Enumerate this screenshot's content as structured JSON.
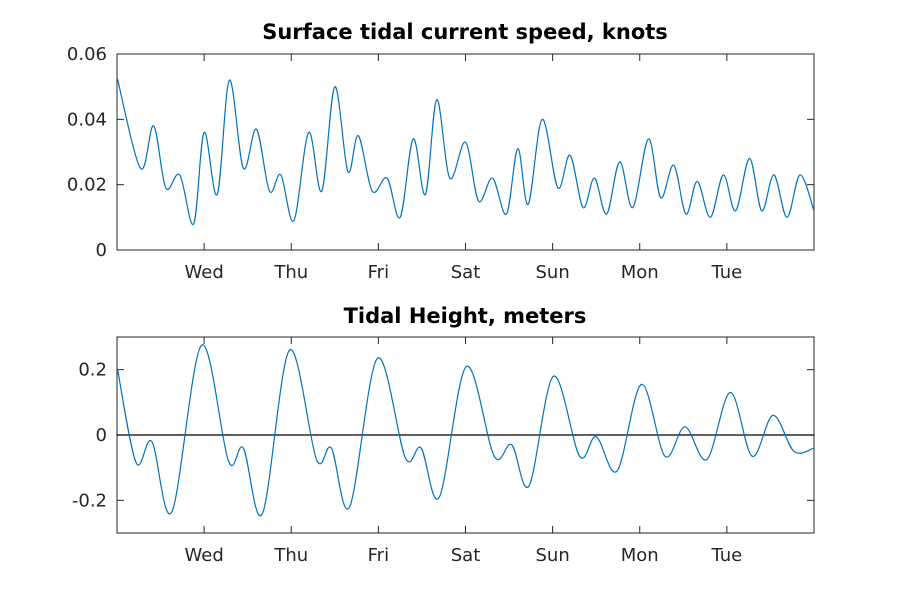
{
  "chart_data": [
    {
      "type": "line",
      "title": "Surface tidal current speed, knots",
      "xlabel": "",
      "ylabel": "",
      "x_tick_labels": [
        "Wed",
        "Thu",
        "Fri",
        "Sat",
        "Sun",
        "Mon",
        "Tue"
      ],
      "x_tick_days": [
        1,
        2,
        3,
        4,
        5,
        6,
        7
      ],
      "xlim_days": [
        0,
        8
      ],
      "ylim": [
        0,
        0.06
      ],
      "y_ticks": [
        0,
        0.02,
        0.04,
        0.06
      ],
      "y_tick_labels": [
        "0",
        "0.02",
        "0.04",
        "0.06"
      ],
      "grid": false,
      "line_color": "#0072bd",
      "series": [
        {
          "x_days": [
            0.0,
            0.27,
            0.42,
            0.56,
            0.72,
            0.88,
            1.0,
            1.15,
            1.29,
            1.45,
            1.6,
            1.75,
            1.88,
            2.03,
            2.2,
            2.35,
            2.5,
            2.65,
            2.77,
            2.93,
            3.1,
            3.25,
            3.4,
            3.54,
            3.67,
            3.82,
            4.0,
            4.15,
            4.31,
            4.47,
            4.6,
            4.72,
            4.88,
            5.06,
            5.2,
            5.35,
            5.48,
            5.62,
            5.77,
            5.92,
            6.1,
            6.24,
            6.39,
            6.53,
            6.66,
            6.81,
            6.96,
            7.1,
            7.26,
            7.4,
            7.54,
            7.69,
            7.84,
            8.0
          ],
          "values": [
            0.053,
            0.025,
            0.038,
            0.019,
            0.023,
            0.008,
            0.036,
            0.017,
            0.052,
            0.025,
            0.037,
            0.018,
            0.023,
            0.009,
            0.036,
            0.018,
            0.05,
            0.024,
            0.035,
            0.018,
            0.022,
            0.01,
            0.034,
            0.017,
            0.046,
            0.022,
            0.033,
            0.015,
            0.022,
            0.011,
            0.031,
            0.014,
            0.04,
            0.019,
            0.029,
            0.013,
            0.022,
            0.011,
            0.027,
            0.013,
            0.034,
            0.016,
            0.026,
            0.011,
            0.021,
            0.01,
            0.023,
            0.012,
            0.028,
            0.012,
            0.023,
            0.01,
            0.023,
            0.012
          ]
        }
      ]
    },
    {
      "type": "line",
      "title": "Tidal Height, meters",
      "xlabel": "",
      "ylabel": "",
      "x_tick_labels": [
        "Wed",
        "Thu",
        "Fri",
        "Sat",
        "Sun",
        "Mon",
        "Tue"
      ],
      "x_tick_days": [
        1,
        2,
        3,
        4,
        5,
        6,
        7
      ],
      "xlim_days": [
        0,
        8
      ],
      "ylim": [
        -0.3,
        0.3
      ],
      "y_ticks": [
        -0.2,
        0,
        0.2
      ],
      "y_tick_labels": [
        "-0.2",
        "0",
        "0.2"
      ],
      "grid": false,
      "zero_line": true,
      "line_color": "#0072bd",
      "series": [
        {
          "x_days": [
            0.0,
            0.22,
            0.4,
            0.63,
            0.97,
            1.28,
            1.45,
            1.67,
            1.98,
            2.29,
            2.46,
            2.67,
            2.99,
            3.31,
            3.49,
            3.7,
            4.01,
            4.33,
            4.53,
            4.73,
            5.01,
            5.31,
            5.5,
            5.74,
            6.02,
            6.29,
            6.52,
            6.77,
            7.04,
            7.29,
            7.53,
            7.77,
            8.0
          ],
          "values": [
            0.21,
            -0.085,
            -0.02,
            -0.235,
            0.275,
            -0.08,
            -0.04,
            -0.24,
            0.26,
            -0.075,
            -0.04,
            -0.22,
            0.235,
            -0.07,
            -0.04,
            -0.19,
            0.21,
            -0.065,
            -0.03,
            -0.155,
            0.18,
            -0.065,
            -0.005,
            -0.11,
            0.155,
            -0.065,
            0.025,
            -0.075,
            0.13,
            -0.065,
            0.06,
            -0.05,
            -0.04
          ]
        }
      ]
    }
  ]
}
